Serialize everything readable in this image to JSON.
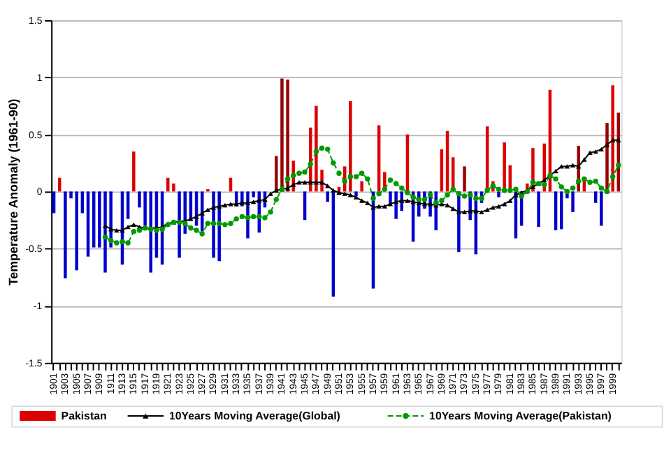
{
  "chart_data": {
    "type": "bar",
    "ylabel": "Temperature Anomaly (1961-90)",
    "categories": [
      "1901",
      null,
      "1903",
      null,
      "1905",
      null,
      "1907",
      null,
      "1909",
      null,
      "1911",
      null,
      "1913",
      null,
      "1915",
      null,
      "1917",
      null,
      "1919",
      null,
      "1921",
      null,
      "1923",
      null,
      "1925",
      null,
      "1927",
      null,
      "1929",
      null,
      "1931",
      null,
      "1933",
      null,
      "1935",
      null,
      "1937",
      null,
      "1939",
      null,
      "1941",
      null,
      "1943",
      null,
      "1945",
      null,
      "1947",
      null,
      "1949",
      null,
      "1951",
      null,
      "1953",
      null,
      "1955",
      null,
      "1957",
      null,
      "1959",
      null,
      "1961",
      null,
      "1963",
      null,
      "1965",
      null,
      "1967",
      null,
      "1969",
      null,
      "1971",
      null,
      "1973",
      null,
      "1975",
      null,
      "1977",
      null,
      "1979",
      null,
      "1981",
      null,
      "1983",
      null,
      "1985",
      null,
      "1987",
      null,
      "1989",
      null,
      "1991",
      null,
      "1993",
      null,
      "1995",
      null,
      "1997",
      null,
      "1999",
      null
    ],
    "series": [
      {
        "name": "Pakistan",
        "color": "#dd0000",
        "colors": [
          "#0000cc",
          "#dd0000",
          "#0000cc",
          "#0000cc",
          "#0000cc",
          "#0000cc",
          "#0000cc",
          "#0000cc",
          "#0000cc",
          "#0000cc",
          "#0000cc",
          "#dd0000",
          "#0000cc",
          "#0000cc",
          "#dd0000",
          "#0000cc",
          "#0000cc",
          "#0000cc",
          "#0000cc",
          "#0000cc",
          "#dd0000",
          "#dd0000",
          "#0000cc",
          "#0000cc",
          "#0000cc",
          "#0000cc",
          "#0000cc",
          "#dd0000",
          "#0000cc",
          "#0000cc",
          "#dd0000",
          "#dd0000",
          "#0000cc",
          "#0000cc",
          "#0000cc",
          "#0000cc",
          "#0000cc",
          "#0000cc",
          "#dd0000",
          "#990000",
          "#990000",
          "#990000",
          "#dd0000",
          "#dd0000",
          "#0000cc",
          "#dd0000",
          "#dd0000",
          "#dd0000",
          "#0000cc",
          "#0000cc",
          "#dd0000",
          "#dd0000",
          "#dd0000",
          "#0000cc",
          "#dd0000",
          "#dd0000",
          "#0000cc",
          "#dd0000",
          "#dd0000",
          "#0000cc",
          "#0000cc",
          "#0000cc",
          "#dd0000",
          "#0000cc",
          "#0000cc",
          "#0000cc",
          "#0000cc",
          "#0000cc",
          "#dd0000",
          "#dd0000",
          "#dd0000",
          "#0000cc",
          "#990000",
          "#0000cc",
          "#0000cc",
          "#0000cc",
          "#dd0000",
          "#dd0000",
          "#0000cc",
          "#dd0000",
          "#dd0000",
          "#0000cc",
          "#0000cc",
          "#dd0000",
          "#dd0000",
          "#0000cc",
          "#dd0000",
          "#dd0000",
          "#0000cc",
          "#0000cc",
          "#0000cc",
          "#0000cc",
          "#990000",
          "#dd0000",
          "#dd0000",
          "#0000cc",
          "#0000cc",
          "#990000",
          "#dd0000",
          "#990000"
        ],
        "values": [
          -0.19,
          0.12,
          -0.76,
          -0.06,
          -0.69,
          -0.19,
          -0.57,
          -0.49,
          -0.49,
          -0.71,
          -0.49,
          0,
          -0.64,
          -0.24,
          0.35,
          -0.14,
          -0.3,
          -0.71,
          -0.58,
          -0.64,
          0.12,
          0.07,
          -0.58,
          -0.37,
          -0.25,
          -0.3,
          -0.35,
          0.02,
          -0.58,
          -0.61,
          0,
          0.12,
          -0.13,
          -0.13,
          -0.41,
          -0.05,
          -0.36,
          -0.14,
          0,
          0.31,
          0.99,
          0.98,
          0.27,
          0,
          -0.25,
          0.56,
          0.75,
          0.19,
          -0.09,
          -0.92,
          0.04,
          0.22,
          0.79,
          -0.04,
          0.09,
          0,
          -0.85,
          0.58,
          0.17,
          -0.12,
          -0.24,
          -0.17,
          0.5,
          -0.44,
          -0.22,
          -0.15,
          -0.22,
          -0.34,
          0.37,
          0.53,
          0.3,
          -0.53,
          0.22,
          -0.25,
          -0.55,
          -0.1,
          0.57,
          0.09,
          -0.05,
          0.43,
          0.23,
          -0.41,
          -0.3,
          0.07,
          0.38,
          -0.31,
          0.42,
          0.89,
          -0.34,
          -0.33,
          -0.06,
          -0.18,
          0.4,
          0.1,
          0,
          -0.1,
          -0.3,
          0.6,
          0.93,
          0.69
        ]
      },
      {
        "name": "10Years Moving Average(Global)",
        "type": "line",
        "color": "#000000",
        "marker": "triangle",
        "line_style": "solid",
        "values": [
          null,
          null,
          null,
          null,
          null,
          null,
          null,
          null,
          null,
          -0.3,
          -0.33,
          -0.34,
          -0.34,
          -0.31,
          -0.29,
          -0.31,
          -0.32,
          -0.32,
          -0.32,
          -0.31,
          -0.28,
          -0.27,
          -0.26,
          -0.26,
          -0.24,
          -0.22,
          -0.19,
          -0.16,
          -0.14,
          -0.13,
          -0.12,
          -0.11,
          -0.11,
          -0.1,
          -0.1,
          -0.09,
          -0.08,
          -0.07,
          -0.02,
          0.01,
          0.02,
          0.03,
          0.06,
          0.08,
          0.08,
          0.08,
          0.08,
          0.08,
          0.05,
          0.01,
          -0.01,
          -0.02,
          -0.03,
          -0.05,
          -0.08,
          -0.1,
          -0.14,
          -0.13,
          -0.13,
          -0.11,
          -0.09,
          -0.08,
          -0.08,
          -0.09,
          -0.1,
          -0.11,
          -0.11,
          -0.12,
          -0.11,
          -0.12,
          -0.15,
          -0.18,
          -0.18,
          -0.17,
          -0.17,
          -0.18,
          -0.16,
          -0.14,
          -0.13,
          -0.11,
          -0.08,
          -0.03,
          -0.01,
          0.01,
          0.04,
          0.07,
          0.1,
          0.14,
          0.18,
          0.22,
          0.22,
          0.23,
          0.22,
          0.28,
          0.34,
          0.35,
          0.37,
          0.41,
          0.45,
          0.45
        ]
      },
      {
        "name": "10Years Moving Average(Pakistan)",
        "type": "line",
        "color": "#009900",
        "marker": "circle",
        "line_style": "dashed",
        "values": [
          null,
          null,
          null,
          null,
          null,
          null,
          null,
          null,
          null,
          -0.4,
          -0.43,
          -0.45,
          -0.44,
          -0.45,
          -0.35,
          -0.34,
          -0.32,
          -0.33,
          -0.34,
          -0.33,
          -0.29,
          -0.27,
          -0.27,
          -0.28,
          -0.32,
          -0.34,
          -0.37,
          -0.28,
          -0.28,
          -0.28,
          -0.29,
          -0.28,
          -0.24,
          -0.22,
          -0.23,
          -0.22,
          -0.22,
          -0.23,
          -0.18,
          -0.07,
          0.02,
          0.11,
          0.14,
          0.16,
          0.17,
          0.24,
          0.35,
          0.38,
          0.37,
          0.25,
          0.16,
          0.09,
          0.13,
          0.13,
          0.16,
          0.11,
          -0.06,
          -0.02,
          0.02,
          0.1,
          0.07,
          0.03,
          -0.01,
          -0.05,
          -0.07,
          -0.07,
          -0.03,
          -0.1,
          -0.08,
          -0.03,
          0.02,
          -0.02,
          -0.04,
          -0.03,
          -0.06,
          -0.06,
          0.01,
          0.05,
          0.02,
          0.01,
          0.01,
          0.02,
          -0.04,
          0,
          0.08,
          0.07,
          0.06,
          0.14,
          0.11,
          0.04,
          0,
          0.03,
          0.09,
          0.11,
          0.08,
          0.09,
          0.03,
          0,
          0.13,
          0.23
        ]
      }
    ],
    "ylim": [
      -1.5,
      1.5
    ],
    "yticks": [
      -1.5,
      -1,
      -0.5,
      0,
      0.5,
      1,
      1.5
    ],
    "grid": "y",
    "legend": "bottom"
  }
}
